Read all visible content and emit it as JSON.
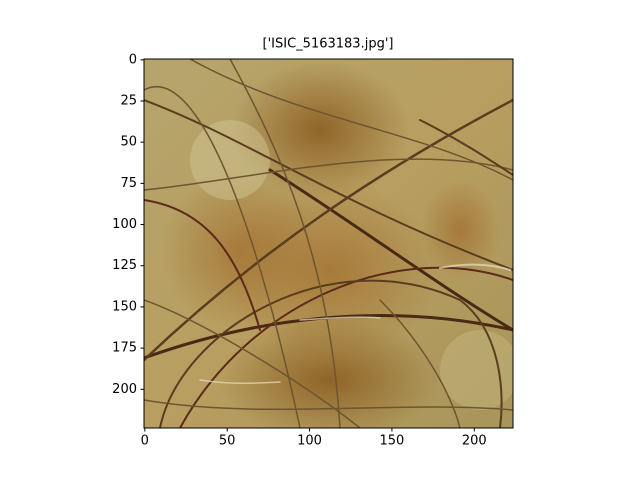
{
  "chart_data": {
    "type": "image",
    "title": "['ISIC_5163183.jpg']",
    "xlim": [
      -0.5,
      223.5
    ],
    "xticks": [
      0,
      50,
      100,
      150,
      200
    ],
    "ylim": [
      223.5,
      -0.5
    ],
    "yticks": [
      0,
      25,
      50,
      75,
      100,
      125,
      150,
      175,
      200
    ]
  }
}
